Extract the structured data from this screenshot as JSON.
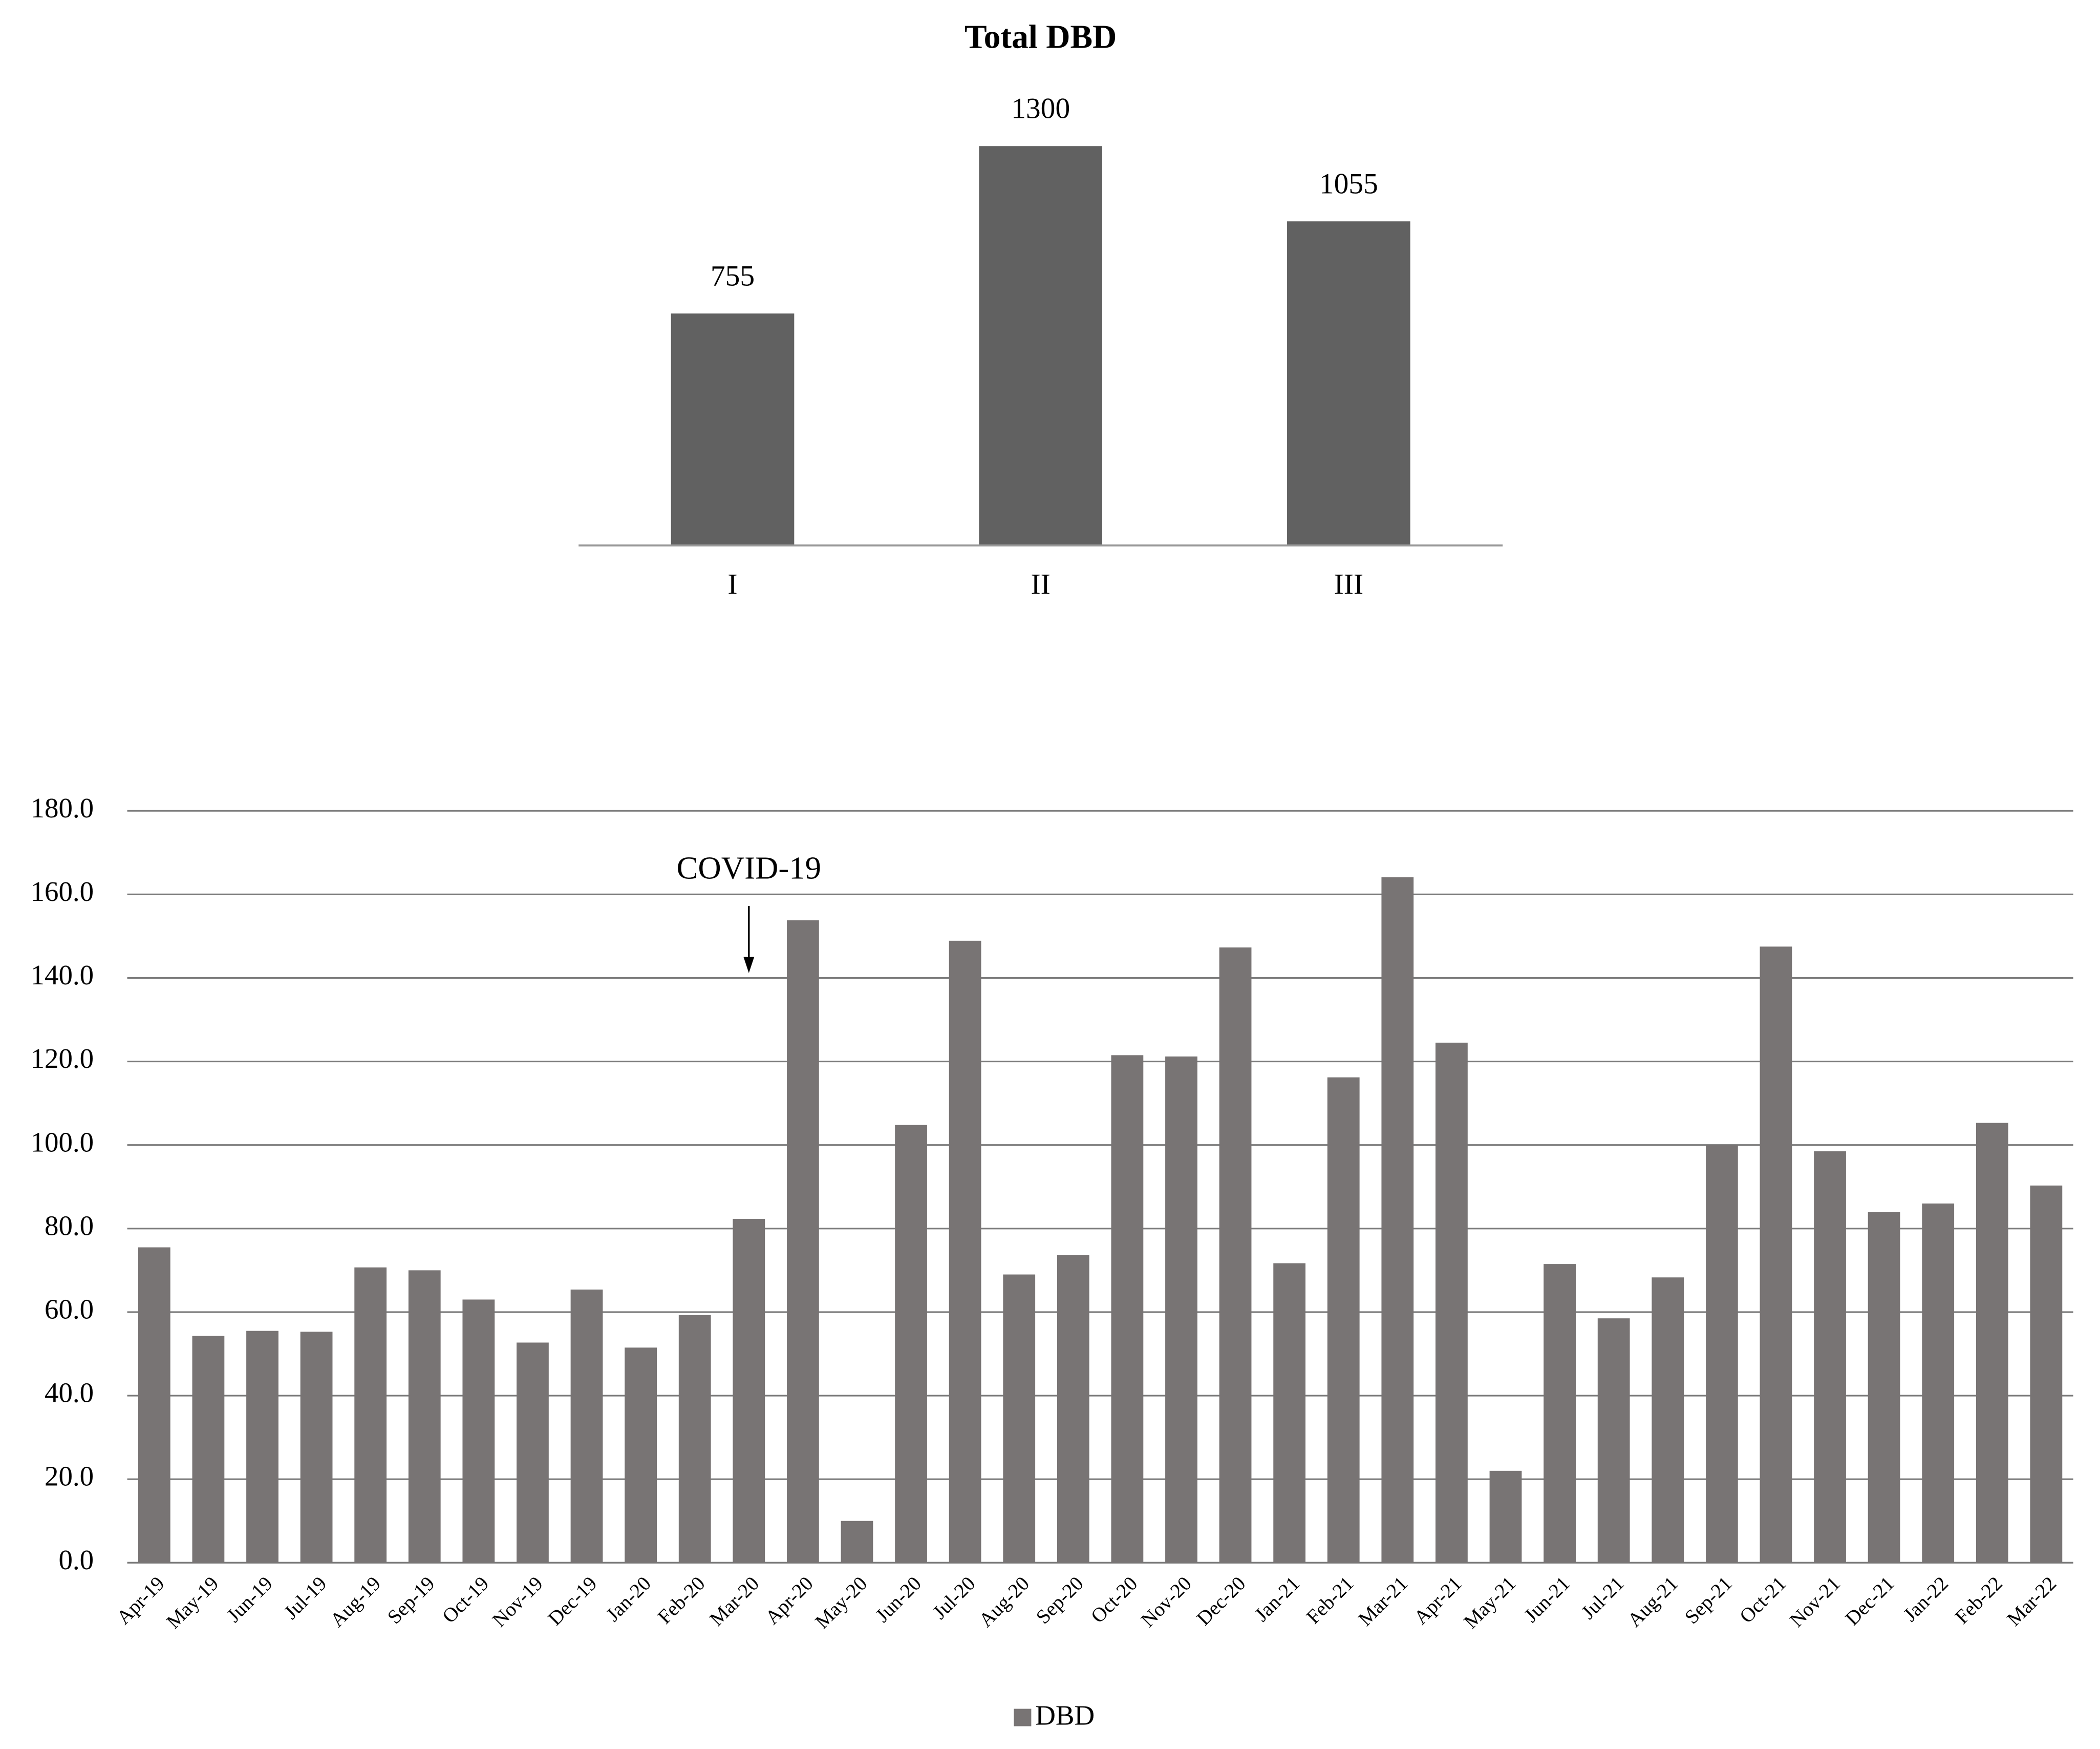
{
  "chart_data": [
    {
      "type": "bar",
      "title": "Total DBD",
      "categories": [
        "I",
        "II",
        "III"
      ],
      "values": [
        755,
        1300,
        1055
      ],
      "color": "#616161"
    },
    {
      "type": "bar",
      "categories": [
        "Apr-19",
        "May-19",
        "Jun-19",
        "Jul-19",
        "Aug-19",
        "Sep-19",
        "Oct-19",
        "Nov-19",
        "Dec-19",
        "Jan-20",
        "Feb-20",
        "Mar-20",
        "Apr-20",
        "May-20",
        "Jun-20",
        "Jul-20",
        "Aug-20",
        "Sep-20",
        "Oct-20",
        "Nov-20",
        "Dec-20",
        "Jan-21",
        "Feb-21",
        "Mar-21",
        "Apr-21",
        "May-21",
        "Jun-21",
        "Jul-21",
        "Aug-21",
        "Sep-21",
        "Oct-21",
        "Nov-21",
        "Dec-21",
        "Jan-22",
        "Feb-22",
        "Mar-22"
      ],
      "series": [
        {
          "name": "DBD",
          "color": "#787474",
          "values": [
            75.5,
            54.3,
            55.5,
            55.3,
            70.7,
            70.0,
            63.0,
            52.7,
            65.4,
            51.5,
            59.3,
            82.3,
            153.8,
            10.0,
            104.8,
            148.9,
            69.0,
            73.7,
            121.5,
            121.2,
            147.3,
            71.7,
            116.2,
            164.1,
            124.5,
            22.0,
            71.5,
            58.5,
            68.3,
            100.0,
            147.5,
            98.5,
            84.0,
            86.0,
            105.3,
            90.3
          ]
        }
      ],
      "ylim": [
        0,
        180
      ],
      "yticks": [
        {
          "value": 0,
          "label": "0.0"
        },
        {
          "value": 20,
          "label": "20.0"
        },
        {
          "value": 40,
          "label": "40.0"
        },
        {
          "value": 60,
          "label": "60.0"
        },
        {
          "value": 80,
          "label": "80.0"
        },
        {
          "value": 100,
          "label": "100.0"
        },
        {
          "value": 120,
          "label": "120.0"
        },
        {
          "value": 140,
          "label": "140.0"
        },
        {
          "value": 160,
          "label": "160.0"
        },
        {
          "value": 180,
          "label": "180.0"
        }
      ],
      "grid": true,
      "legend": "bottom",
      "annotations": [
        {
          "text": "COVID-19",
          "x": "Mar-20"
        }
      ]
    }
  ]
}
